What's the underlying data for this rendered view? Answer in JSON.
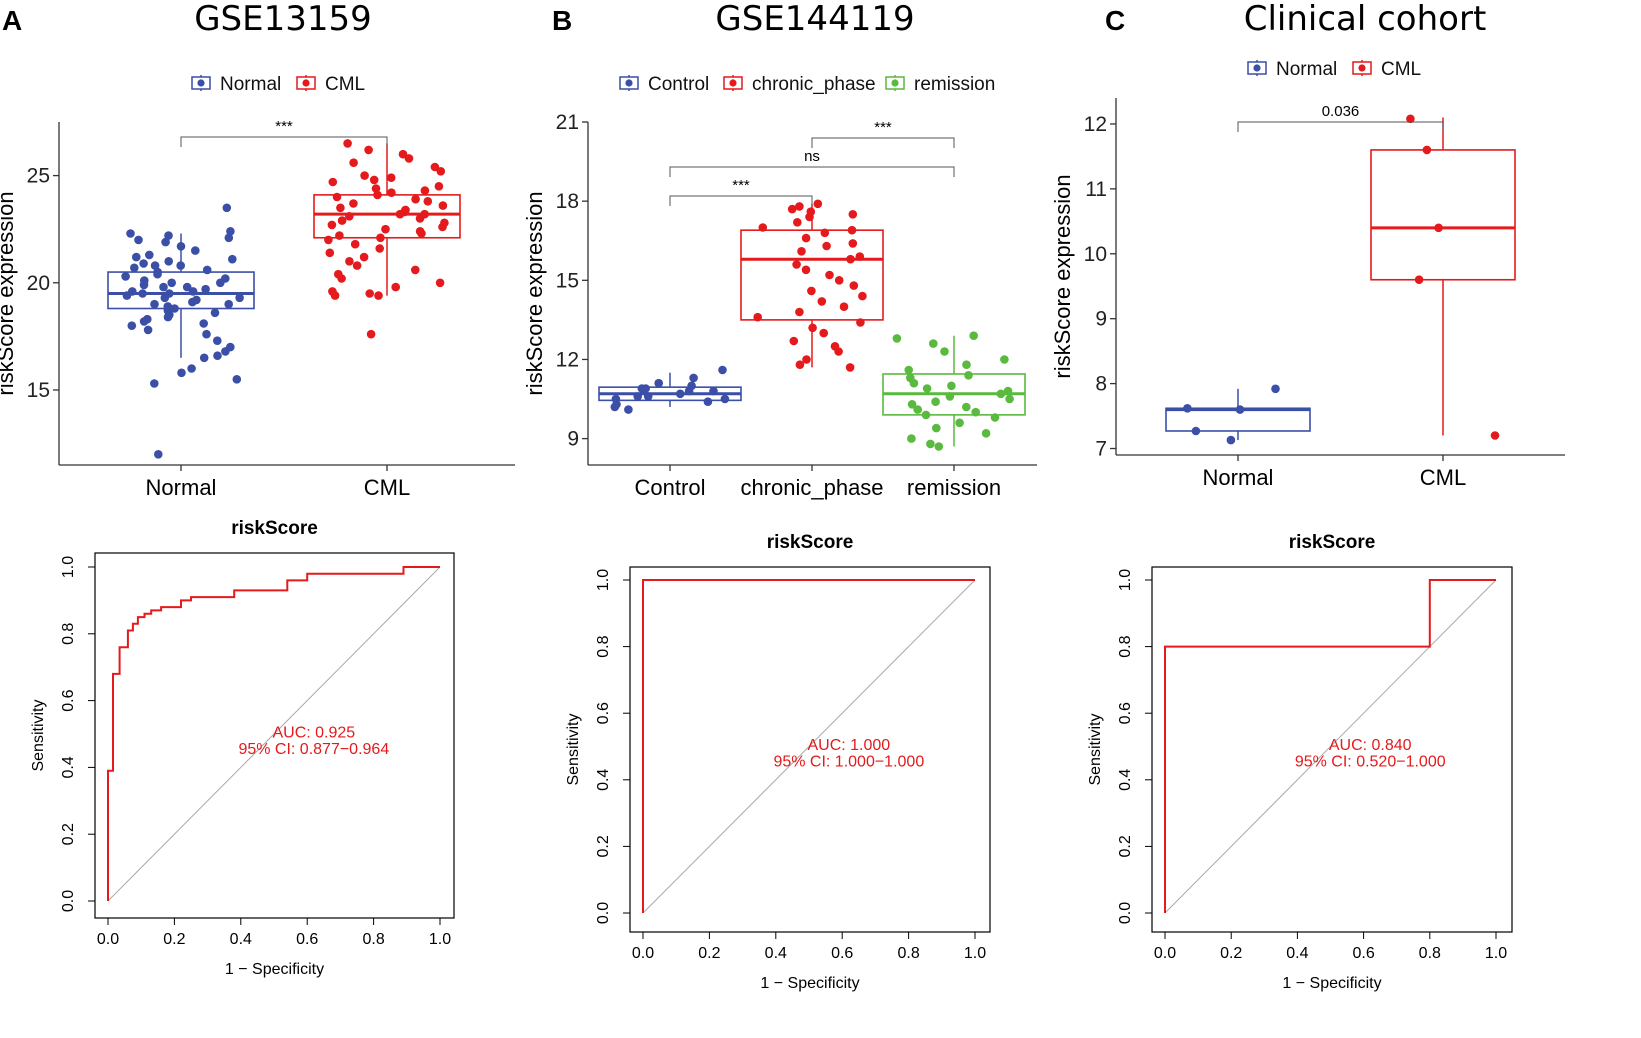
{
  "colors": {
    "blue": "#3a4fa5",
    "red": "#e41a1c",
    "green": "#5ab93f",
    "roc": "#e41a1c",
    "diag": "#aaaaaa"
  },
  "panels": [
    {
      "letter": "A",
      "title": "GSE13159"
    },
    {
      "letter": "B",
      "title": "GSE144119"
    },
    {
      "letter": "C",
      "title": "Clinical cohort"
    }
  ],
  "chart_data": [
    {
      "id": "box-a",
      "type": "box",
      "ylabel": "riskScore expression",
      "ylim": [
        11.5,
        27.5
      ],
      "yticks": [
        15,
        20,
        25
      ],
      "legend": [
        "Normal",
        "CML"
      ],
      "categories": [
        "Normal",
        "CML"
      ],
      "colors": [
        "blue",
        "red"
      ],
      "boxes": [
        {
          "name": "Normal",
          "q1": 18.8,
          "median": 19.5,
          "q3": 20.5,
          "whisker_low": 16.5,
          "whisker_high": 22.3
        },
        {
          "name": "CML",
          "q1": 22.1,
          "median": 23.2,
          "q3": 24.1,
          "whisker_low": 19.4,
          "whisker_high": 26.5
        }
      ],
      "points": [
        [
          23.5,
          22.4,
          22.3,
          22.2,
          22.1,
          22.0,
          21.9,
          21.7,
          21.5,
          21.3,
          21.2,
          21.1,
          21.0,
          20.9,
          20.8,
          20.8,
          20.7,
          20.6,
          20.5,
          20.4,
          20.3,
          20.2,
          20.1,
          20.0,
          20.0,
          19.9,
          19.8,
          19.8,
          19.7,
          19.6,
          19.6,
          19.5,
          19.5,
          19.4,
          19.3,
          19.3,
          19.2,
          19.1,
          19.0,
          19.0,
          18.9,
          18.8,
          18.7,
          18.6,
          18.5,
          18.4,
          18.3,
          18.2,
          18.1,
          18.0,
          17.8,
          17.6,
          17.3,
          17.0,
          16.8,
          16.6,
          16.5,
          16.0,
          15.8,
          15.5,
          15.3,
          12.0
        ],
        [
          26.5,
          26.2,
          26.0,
          25.8,
          25.6,
          25.4,
          25.2,
          25.0,
          24.9,
          24.8,
          24.7,
          24.5,
          24.4,
          24.3,
          24.2,
          24.1,
          24.0,
          23.9,
          23.8,
          23.7,
          23.6,
          23.5,
          23.4,
          23.3,
          23.2,
          23.2,
          23.1,
          23.0,
          22.9,
          22.8,
          22.7,
          22.6,
          22.5,
          22.4,
          22.3,
          22.2,
          22.1,
          22.0,
          21.8,
          21.6,
          21.4,
          21.2,
          21.0,
          20.8,
          20.6,
          20.4,
          20.2,
          20.0,
          19.8,
          19.6,
          19.5,
          19.4,
          19.4,
          17.6
        ]
      ],
      "comparisons": [
        {
          "from": 0,
          "to": 1,
          "label": "***",
          "y": 27.2
        }
      ]
    },
    {
      "id": "box-b",
      "type": "box",
      "ylabel": "riskScore expression",
      "ylim": [
        8.0,
        21.0
      ],
      "yticks": [
        9,
        12,
        15,
        18,
        21
      ],
      "legend": [
        "Control",
        "chronic_phase",
        "remission"
      ],
      "categories": [
        "Control",
        "chronic_phase",
        "remission"
      ],
      "colors": [
        "blue",
        "red",
        "green"
      ],
      "boxes": [
        {
          "name": "Control",
          "q1": 10.45,
          "median": 10.7,
          "q3": 10.95,
          "whisker_low": 10.2,
          "whisker_high": 11.5
        },
        {
          "name": "chronic_phase",
          "q1": 13.5,
          "median": 15.8,
          "q3": 16.9,
          "whisker_low": 11.7,
          "whisker_high": 17.9
        },
        {
          "name": "remission",
          "q1": 9.9,
          "median": 10.7,
          "q3": 11.45,
          "whisker_low": 8.7,
          "whisker_high": 12.9
        }
      ],
      "points": [
        [
          11.6,
          11.3,
          11.1,
          11.0,
          10.9,
          10.8,
          10.8,
          10.7,
          10.6,
          10.6,
          10.5,
          10.4,
          10.3,
          10.2,
          10.1,
          10.9,
          10.5
        ],
        [
          17.9,
          17.8,
          17.7,
          17.6,
          17.5,
          17.4,
          17.2,
          17.0,
          16.9,
          16.8,
          16.6,
          16.4,
          16.3,
          16.1,
          15.9,
          15.8,
          15.6,
          15.4,
          15.2,
          15.0,
          14.8,
          14.6,
          14.4,
          14.2,
          14.0,
          13.8,
          13.6,
          13.4,
          13.2,
          13.0,
          12.7,
          12.5,
          12.3,
          12.0,
          11.8,
          11.7
        ],
        [
          12.9,
          12.8,
          12.6,
          12.3,
          12.0,
          11.8,
          11.6,
          11.4,
          11.3,
          11.1,
          11.0,
          10.9,
          10.8,
          10.7,
          10.6,
          10.5,
          10.4,
          10.3,
          10.2,
          10.1,
          10.0,
          9.9,
          9.8,
          9.6,
          9.4,
          9.2,
          9.0,
          8.8,
          8.7
        ]
      ],
      "comparisons": [
        {
          "from": 0,
          "to": 1,
          "label": "***",
          "y": 19.7
        },
        {
          "from": 0,
          "to": 2,
          "label": "ns",
          "y": 21.9
        },
        {
          "from": 1,
          "to": 2,
          "label": "***",
          "y": 23.1
        }
      ]
    },
    {
      "id": "box-c",
      "type": "box",
      "ylabel": "riskScore expression",
      "ylim": [
        6.9,
        12.4
      ],
      "yticks": [
        7,
        8,
        9,
        10,
        11,
        12
      ],
      "legend": [
        "Normal",
        "CML"
      ],
      "categories": [
        "Normal",
        "CML"
      ],
      "colors": [
        "blue",
        "red"
      ],
      "boxes": [
        {
          "name": "Normal",
          "q1": 7.27,
          "median": 7.6,
          "q3": 7.62,
          "whisker_low": 7.13,
          "whisker_high": 7.92
        },
        {
          "name": "CML",
          "q1": 9.6,
          "median": 10.4,
          "q3": 11.6,
          "whisker_low": 7.2,
          "whisker_high": 12.1
        }
      ],
      "points": [
        [
          7.92,
          7.6,
          7.62,
          7.27,
          7.13
        ],
        [
          12.08,
          11.6,
          10.4,
          9.6,
          7.2
        ]
      ],
      "comparisons": [
        {
          "from": 0,
          "to": 1,
          "label": "0.036",
          "y": 12.33
        }
      ]
    },
    {
      "id": "roc-a",
      "type": "line",
      "title": "riskScore",
      "xlabel": "1 − Specificity",
      "ylabel": "Sensitivity",
      "xlim": [
        0,
        1
      ],
      "ylim": [
        0,
        1
      ],
      "ticks": [
        "0.0",
        "0.2",
        "0.4",
        "0.6",
        "0.8",
        "1.0"
      ],
      "auc_text": "AUC: 0.925",
      "ci_text": "95% CI: 0.877−0.964",
      "curve": [
        [
          0,
          0
        ],
        [
          0,
          0.39
        ],
        [
          0.015,
          0.39
        ],
        [
          0.015,
          0.68
        ],
        [
          0.035,
          0.68
        ],
        [
          0.035,
          0.76
        ],
        [
          0.06,
          0.76
        ],
        [
          0.06,
          0.81
        ],
        [
          0.075,
          0.81
        ],
        [
          0.075,
          0.83
        ],
        [
          0.09,
          0.83
        ],
        [
          0.09,
          0.85
        ],
        [
          0.11,
          0.85
        ],
        [
          0.11,
          0.86
        ],
        [
          0.13,
          0.86
        ],
        [
          0.13,
          0.87
        ],
        [
          0.16,
          0.87
        ],
        [
          0.16,
          0.88
        ],
        [
          0.22,
          0.88
        ],
        [
          0.22,
          0.9
        ],
        [
          0.25,
          0.9
        ],
        [
          0.25,
          0.91
        ],
        [
          0.38,
          0.91
        ],
        [
          0.38,
          0.93
        ],
        [
          0.54,
          0.93
        ],
        [
          0.54,
          0.96
        ],
        [
          0.6,
          0.96
        ],
        [
          0.6,
          0.98
        ],
        [
          0.89,
          0.98
        ],
        [
          0.89,
          1.0
        ],
        [
          1.0,
          1.0
        ]
      ]
    },
    {
      "id": "roc-b",
      "type": "line",
      "title": "riskScore",
      "xlabel": "1 − Specificity",
      "ylabel": "Sensitivity",
      "xlim": [
        0,
        1
      ],
      "ylim": [
        0,
        1
      ],
      "ticks": [
        "0.0",
        "0.2",
        "0.4",
        "0.6",
        "0.8",
        "1.0"
      ],
      "auc_text": "AUC: 1.000",
      "ci_text": "95% CI: 1.000−1.000",
      "curve": [
        [
          0,
          0
        ],
        [
          0,
          1
        ],
        [
          1,
          1
        ]
      ]
    },
    {
      "id": "roc-c",
      "type": "line",
      "title": "riskScore",
      "xlabel": "1 − Specificity",
      "ylabel": "Sensitivity",
      "xlim": [
        0,
        1
      ],
      "ylim": [
        0,
        1
      ],
      "ticks": [
        "0.0",
        "0.2",
        "0.4",
        "0.6",
        "0.8",
        "1.0"
      ],
      "auc_text": "AUC: 0.840",
      "ci_text": "95% CI: 0.520−1.000",
      "curve": [
        [
          0,
          0
        ],
        [
          0,
          0.8
        ],
        [
          0.8,
          0.8
        ],
        [
          0.8,
          1.0
        ],
        [
          1.0,
          1.0
        ]
      ]
    }
  ]
}
